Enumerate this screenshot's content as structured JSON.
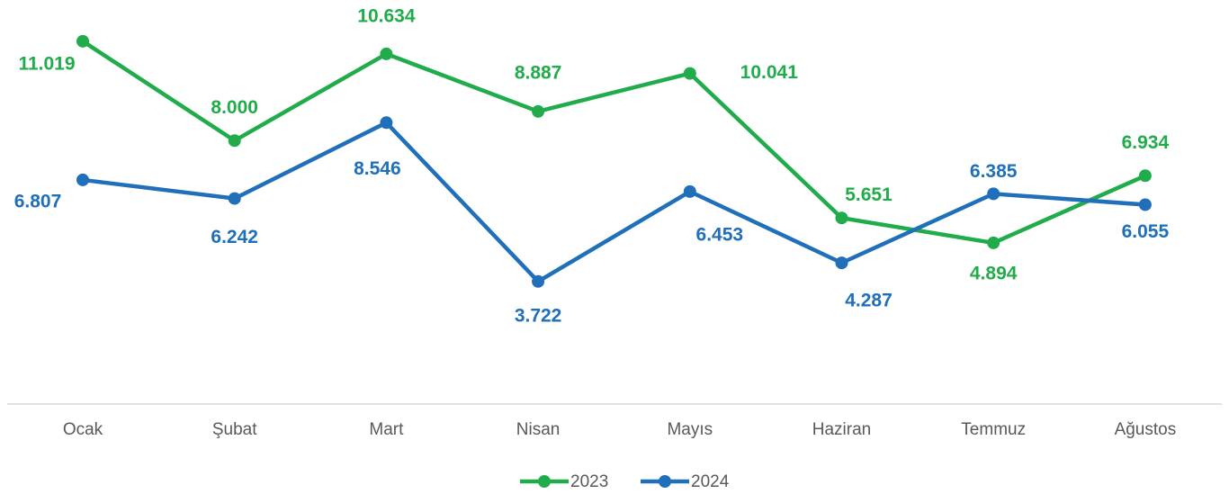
{
  "chart_data": {
    "type": "line",
    "categories": [
      "Ocak",
      "Şubat",
      "Mart",
      "Nisan",
      "Mayıs",
      "Haziran",
      "Temmuz",
      "Ağustos"
    ],
    "series": [
      {
        "name": "2023",
        "color": "#21ac4b",
        "values": [
          11019,
          8000,
          10634,
          8887,
          10041,
          5651,
          4894,
          6934
        ],
        "value_labels": [
          "11.019",
          "8.000",
          "10.634",
          "8.887",
          "10.041",
          "5.651",
          "4.894",
          "6.934"
        ]
      },
      {
        "name": "2024",
        "color": "#1f6fba",
        "values": [
          6807,
          6242,
          8546,
          3722,
          6453,
          4287,
          6385,
          6055
        ],
        "value_labels": [
          "6.807",
          "6.242",
          "8.546",
          "3.722",
          "6.453",
          "4.287",
          "6.385",
          "6.055"
        ]
      }
    ],
    "legend": "bottom"
  }
}
